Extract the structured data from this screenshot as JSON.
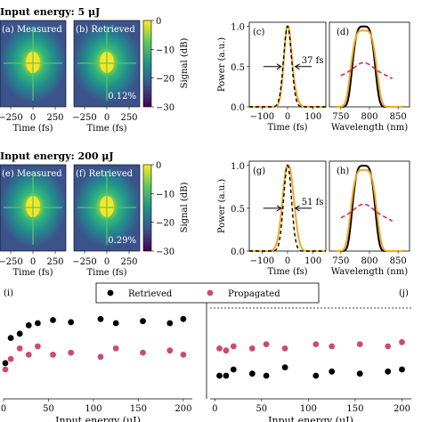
{
  "rows": [
    {
      "title": "Input energy: 5 μJ",
      "percent": "0.12%",
      "fwhm": "37 fs",
      "labels": {
        "measured": "(a) Measured",
        "retrieved": "(b) Retrieved",
        "power": "(c)",
        "spectrum": "(d)"
      }
    },
    {
      "title": "Input energy: 200 μJ",
      "percent": "0.29%",
      "fwhm": "51 fs",
      "labels": {
        "measured": "(e) Measured",
        "retrieved": "(f) Retrieved",
        "power": "(g)",
        "spectrum": "(h)"
      }
    }
  ],
  "colors": {
    "accent": "#f5a623",
    "red": "#d6294f",
    "black": "#000000",
    "magenta": "#d04870"
  },
  "chart_data": [
    {
      "type": "heatmap",
      "panels": [
        "(a) Measured",
        "(b) Retrieved",
        "(e) Measured",
        "(f) Retrieved"
      ],
      "xlabel": "Time (fs)",
      "xticks": [
        "−250",
        "0",
        "250"
      ],
      "colorbar": {
        "label": "Signal (dB)",
        "ticks": [
          "0",
          "−10",
          "−20",
          "−30"
        ],
        "range": [
          -30,
          0
        ]
      }
    },
    {
      "type": "line",
      "panels": [
        "(c)",
        "(g)"
      ],
      "xlabel": "Time (fs)",
      "ylabel": "Power (a.u.)",
      "xlim": [
        -150,
        150
      ],
      "ylim": [
        0,
        1.05
      ],
      "xticks": [
        "−100",
        "0",
        "100"
      ],
      "yticks": [
        "0.0",
        "0.5",
        "1.0"
      ],
      "fwhm": [
        "37 fs",
        "51 fs"
      ]
    },
    {
      "type": "line",
      "panels": [
        "(d)",
        "(h)"
      ],
      "xlabel": "Wavelength (nm)",
      "xlim": [
        730,
        870
      ],
      "xticks": [
        "750",
        "800",
        "850"
      ]
    },
    {
      "type": "scatter",
      "panel": "(i)",
      "xlabel": "Input energy (μJ)",
      "xlim": [
        0,
        210
      ],
      "xticks": [
        "0",
        "50",
        "100",
        "150",
        "200"
      ],
      "legend": [
        "Retrieved",
        "Propagated"
      ],
      "series": [
        {
          "name": "Retrieved",
          "x": [
            2,
            8,
            18,
            28,
            38,
            55,
            75,
            108,
            125,
            155,
            185,
            200
          ],
          "y": [
            0.34,
            0.58,
            0.62,
            0.7,
            0.72,
            0.75,
            0.73,
            0.76,
            0.72,
            0.74,
            0.72,
            0.76
          ]
        },
        {
          "name": "Propagated",
          "x": [
            2,
            8,
            18,
            28,
            38,
            55,
            75,
            108,
            125,
            155,
            185,
            200
          ],
          "y": [
            0.28,
            0.38,
            0.48,
            0.42,
            0.5,
            0.42,
            0.44,
            0.4,
            0.48,
            0.44,
            0.46,
            0.42
          ]
        }
      ]
    },
    {
      "type": "scatter",
      "panel": "(j)",
      "xlabel": "Input energy (μJ)",
      "xlim": [
        -5,
        210
      ],
      "xticks": [
        "0",
        "50",
        "100",
        "150",
        "200"
      ],
      "series": [
        {
          "name": "Retrieved",
          "x": [
            5,
            12,
            20,
            40,
            55,
            75,
            108,
            125,
            155,
            185,
            200
          ],
          "y": [
            0.22,
            0.22,
            0.28,
            0.24,
            0.22,
            0.3,
            0.22,
            0.26,
            0.24,
            0.26,
            0.28
          ]
        },
        {
          "name": "Propagated",
          "x": [
            5,
            12,
            20,
            40,
            55,
            75,
            108,
            125,
            155,
            185,
            200
          ],
          "y": [
            0.48,
            0.46,
            0.5,
            0.48,
            0.52,
            0.48,
            0.52,
            0.5,
            0.52,
            0.5,
            0.54
          ]
        }
      ]
    }
  ]
}
